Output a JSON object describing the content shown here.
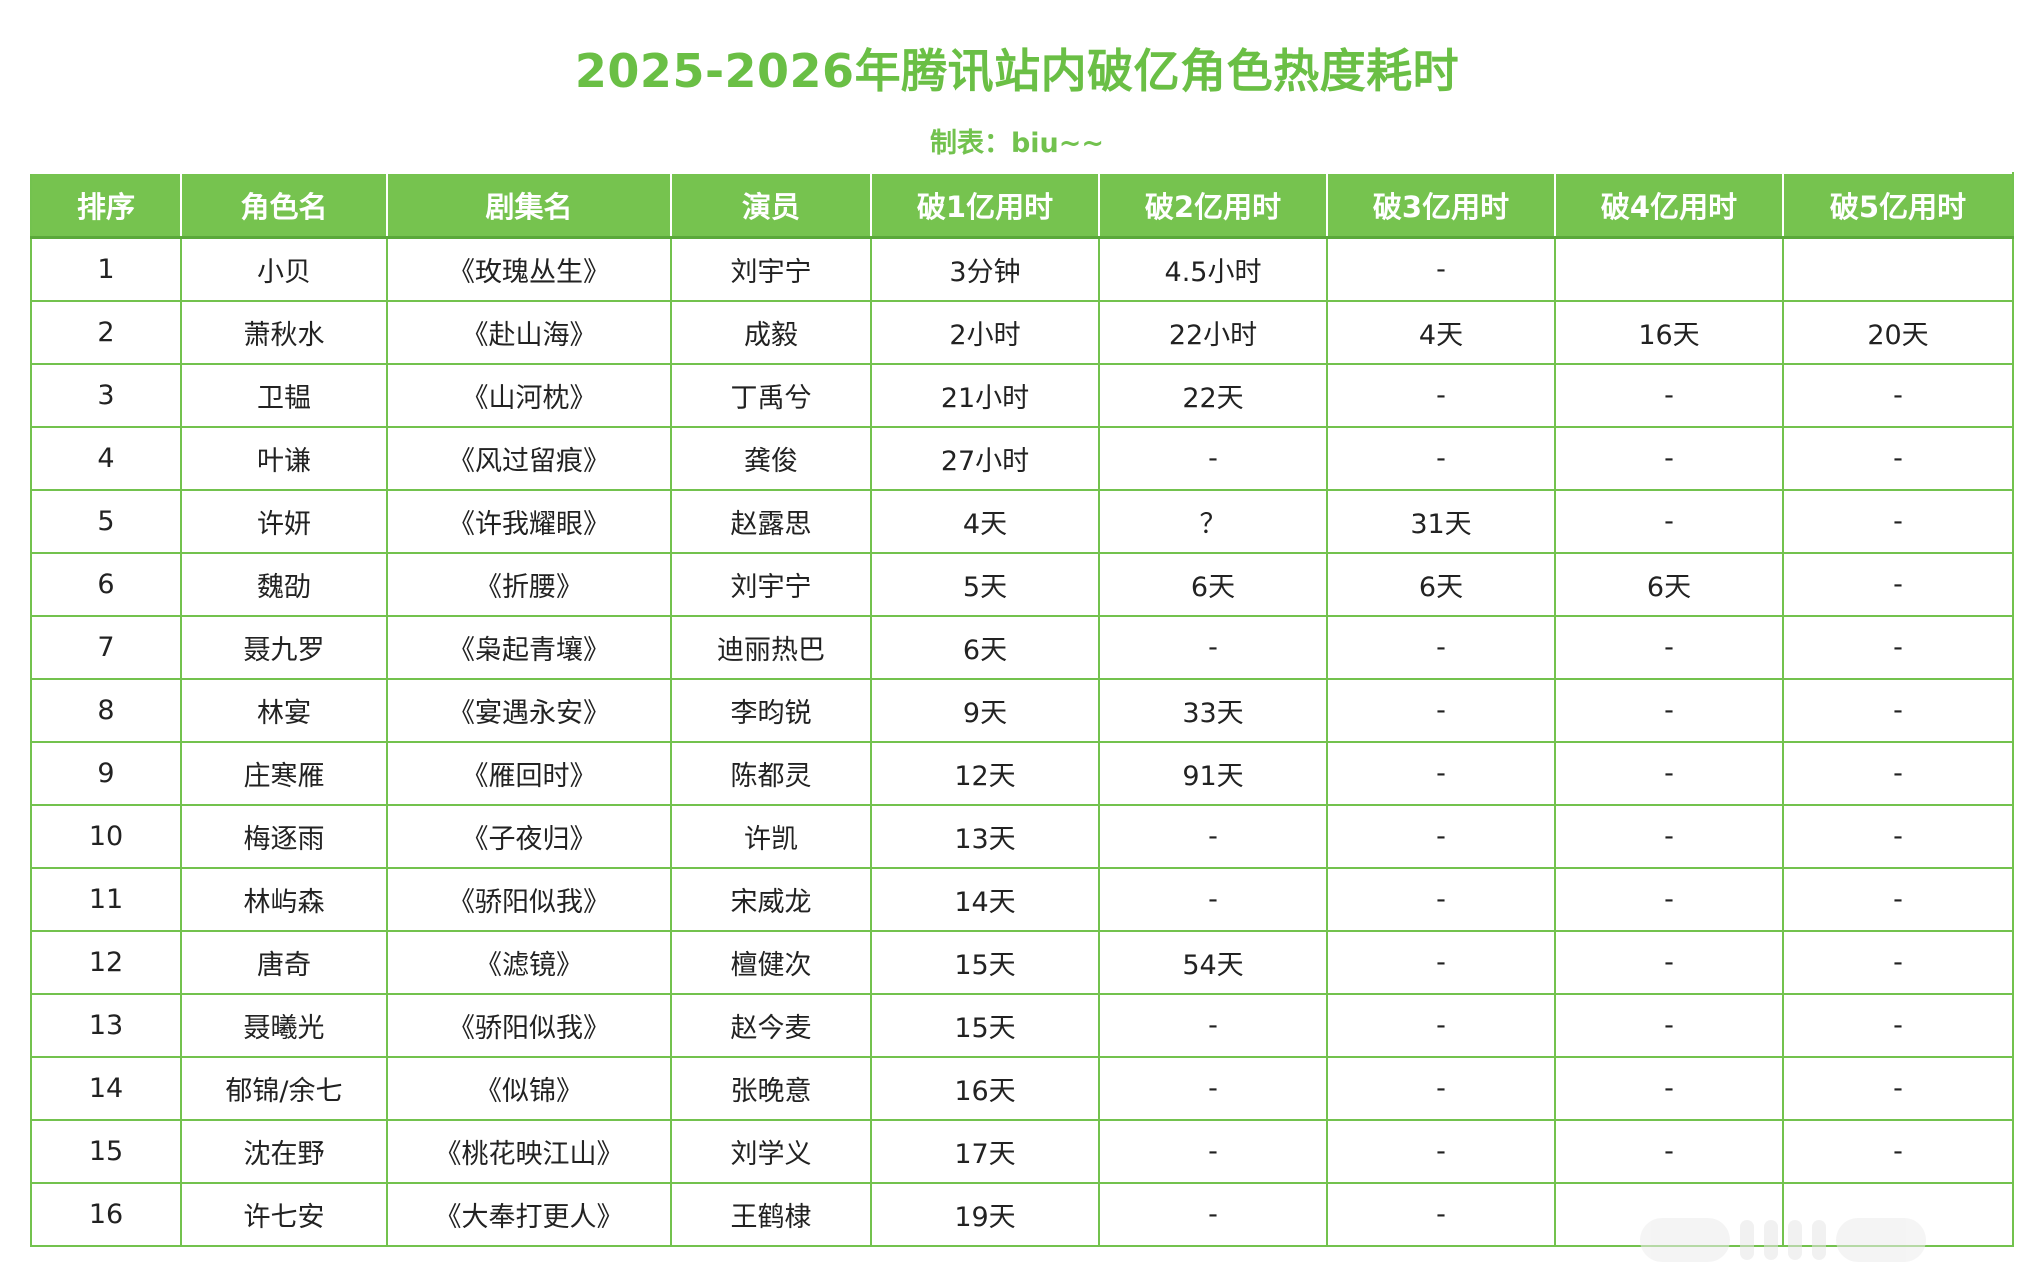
{
  "title": "2025-2026年腾讯站内破亿角色热度耗时",
  "subtitle": "制表：biu~~",
  "colors": {
    "accent": "#76c34f",
    "title": "#6abf45",
    "border": "#73c24e",
    "text": "#222222"
  },
  "table": {
    "headers": [
      "排序",
      "角色名",
      "剧集名",
      "演员",
      "破1亿用时",
      "破2亿用时",
      "破3亿用时",
      "破4亿用时",
      "破5亿用时"
    ],
    "rows": [
      [
        "1",
        "小贝",
        "《玫瑰丛生》",
        "刘宇宁",
        "3分钟",
        "4.5小时",
        "-",
        "",
        ""
      ],
      [
        "2",
        "萧秋水",
        "《赴山海》",
        "成毅",
        "2小时",
        "22小时",
        "4天",
        "16天",
        "20天"
      ],
      [
        "3",
        "卫韫",
        "《山河枕》",
        "丁禹兮",
        "21小时",
        "22天",
        "-",
        "-",
        "-"
      ],
      [
        "4",
        "叶谦",
        "《风过留痕》",
        "龚俊",
        "27小时",
        "-",
        "-",
        "-",
        "-"
      ],
      [
        "5",
        "许妍",
        "《许我耀眼》",
        "赵露思",
        "4天",
        "？",
        "31天",
        "-",
        "-"
      ],
      [
        "6",
        "魏劭",
        "《折腰》",
        "刘宇宁",
        "5天",
        "6天",
        "6天",
        "6天",
        "-"
      ],
      [
        "7",
        "聂九罗",
        "《枭起青壤》",
        "迪丽热巴",
        "6天",
        "-",
        "-",
        "-",
        "-"
      ],
      [
        "8",
        "林宴",
        "《宴遇永安》",
        "李昀锐",
        "9天",
        "33天",
        "-",
        "-",
        "-"
      ],
      [
        "9",
        "庄寒雁",
        "《雁回时》",
        "陈都灵",
        "12天",
        "91天",
        "-",
        "-",
        "-"
      ],
      [
        "10",
        "梅逐雨",
        "《子夜归》",
        "许凯",
        "13天",
        "-",
        "-",
        "-",
        "-"
      ],
      [
        "11",
        "林屿森",
        "《骄阳似我》",
        "宋威龙",
        "14天",
        "-",
        "-",
        "-",
        "-"
      ],
      [
        "12",
        "唐奇",
        "《滤镜》",
        "檀健次",
        "15天",
        "54天",
        "-",
        "-",
        "-"
      ],
      [
        "13",
        "聂曦光",
        "《骄阳似我》",
        "赵今麦",
        "15天",
        "-",
        "-",
        "-",
        "-"
      ],
      [
        "14",
        "郁锦/余七",
        "《似锦》",
        "张晚意",
        "16天",
        "-",
        "-",
        "-",
        "-"
      ],
      [
        "15",
        "沈在野",
        "《桃花映江山》",
        "刘学义",
        "17天",
        "-",
        "-",
        "-",
        "-"
      ],
      [
        "16",
        "许七安",
        "《大奉打更人》",
        "王鹤棣",
        "19天",
        "-",
        "-",
        "",
        ""
      ]
    ]
  }
}
